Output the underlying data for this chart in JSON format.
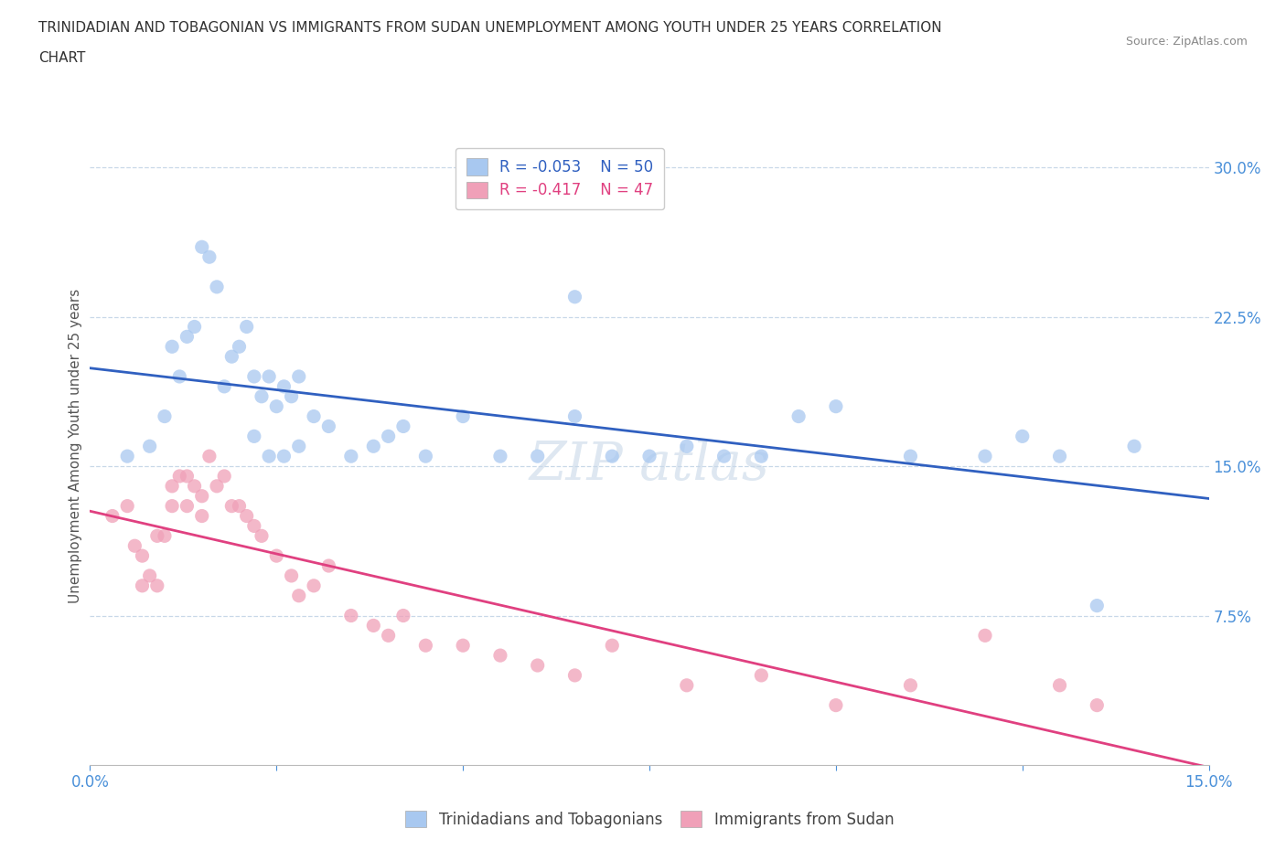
{
  "title_line1": "TRINIDADIAN AND TOBAGONIAN VS IMMIGRANTS FROM SUDAN UNEMPLOYMENT AMONG YOUTH UNDER 25 YEARS CORRELATION",
  "title_line2": "CHART",
  "source_text": "Source: ZipAtlas.com",
  "ylabel": "Unemployment Among Youth under 25 years",
  "xlim": [
    0.0,
    0.15
  ],
  "ylim": [
    0.0,
    0.32
  ],
  "xtick_labels": [
    "0.0%",
    "",
    "",
    "",
    "",
    "",
    "15.0%"
  ],
  "xtick_vals": [
    0.0,
    0.025,
    0.05,
    0.075,
    0.1,
    0.125,
    0.15
  ],
  "ytick_labels_right": [
    "30.0%",
    "22.5%",
    "15.0%",
    "7.5%"
  ],
  "ytick_vals_right": [
    0.3,
    0.225,
    0.15,
    0.075
  ],
  "series1_color": "#a8c8f0",
  "series2_color": "#f0a0b8",
  "line1_color": "#3060c0",
  "line2_color": "#e04080",
  "watermark_color": "#c8d8e8",
  "legend_r1": "R = -0.053",
  "legend_n1": "N = 50",
  "legend_r2": "R = -0.417",
  "legend_n2": "N = 47",
  "legend_label1": "Trinidadians and Tobagonians",
  "legend_label2": "Immigrants from Sudan",
  "series1_x": [
    0.005,
    0.008,
    0.01,
    0.011,
    0.012,
    0.013,
    0.014,
    0.015,
    0.016,
    0.017,
    0.018,
    0.019,
    0.02,
    0.021,
    0.022,
    0.023,
    0.024,
    0.025,
    0.026,
    0.027,
    0.028,
    0.03,
    0.032,
    0.035,
    0.038,
    0.04,
    0.042,
    0.045,
    0.05,
    0.055,
    0.06,
    0.065,
    0.07,
    0.075,
    0.08,
    0.085,
    0.09,
    0.095,
    0.1,
    0.11,
    0.12,
    0.125,
    0.13,
    0.135,
    0.14,
    0.022,
    0.024,
    0.026,
    0.028,
    0.065
  ],
  "series1_y": [
    0.155,
    0.16,
    0.175,
    0.21,
    0.195,
    0.215,
    0.22,
    0.26,
    0.255,
    0.24,
    0.19,
    0.205,
    0.21,
    0.22,
    0.195,
    0.185,
    0.195,
    0.18,
    0.19,
    0.185,
    0.195,
    0.175,
    0.17,
    0.155,
    0.16,
    0.165,
    0.17,
    0.155,
    0.175,
    0.155,
    0.155,
    0.175,
    0.155,
    0.155,
    0.16,
    0.155,
    0.155,
    0.175,
    0.18,
    0.155,
    0.155,
    0.165,
    0.155,
    0.08,
    0.16,
    0.165,
    0.155,
    0.155,
    0.16,
    0.235
  ],
  "series2_x": [
    0.003,
    0.005,
    0.006,
    0.007,
    0.008,
    0.009,
    0.01,
    0.011,
    0.012,
    0.013,
    0.014,
    0.015,
    0.016,
    0.017,
    0.018,
    0.019,
    0.02,
    0.021,
    0.022,
    0.023,
    0.025,
    0.027,
    0.028,
    0.03,
    0.032,
    0.035,
    0.038,
    0.04,
    0.042,
    0.045,
    0.05,
    0.055,
    0.06,
    0.065,
    0.07,
    0.08,
    0.09,
    0.1,
    0.11,
    0.12,
    0.13,
    0.135,
    0.007,
    0.009,
    0.011,
    0.013,
    0.015
  ],
  "series2_y": [
    0.125,
    0.13,
    0.11,
    0.105,
    0.095,
    0.09,
    0.115,
    0.13,
    0.145,
    0.145,
    0.14,
    0.135,
    0.155,
    0.14,
    0.145,
    0.13,
    0.13,
    0.125,
    0.12,
    0.115,
    0.105,
    0.095,
    0.085,
    0.09,
    0.1,
    0.075,
    0.07,
    0.065,
    0.075,
    0.06,
    0.06,
    0.055,
    0.05,
    0.045,
    0.06,
    0.04,
    0.045,
    0.03,
    0.04,
    0.065,
    0.04,
    0.03,
    0.09,
    0.115,
    0.14,
    0.13,
    0.125
  ]
}
